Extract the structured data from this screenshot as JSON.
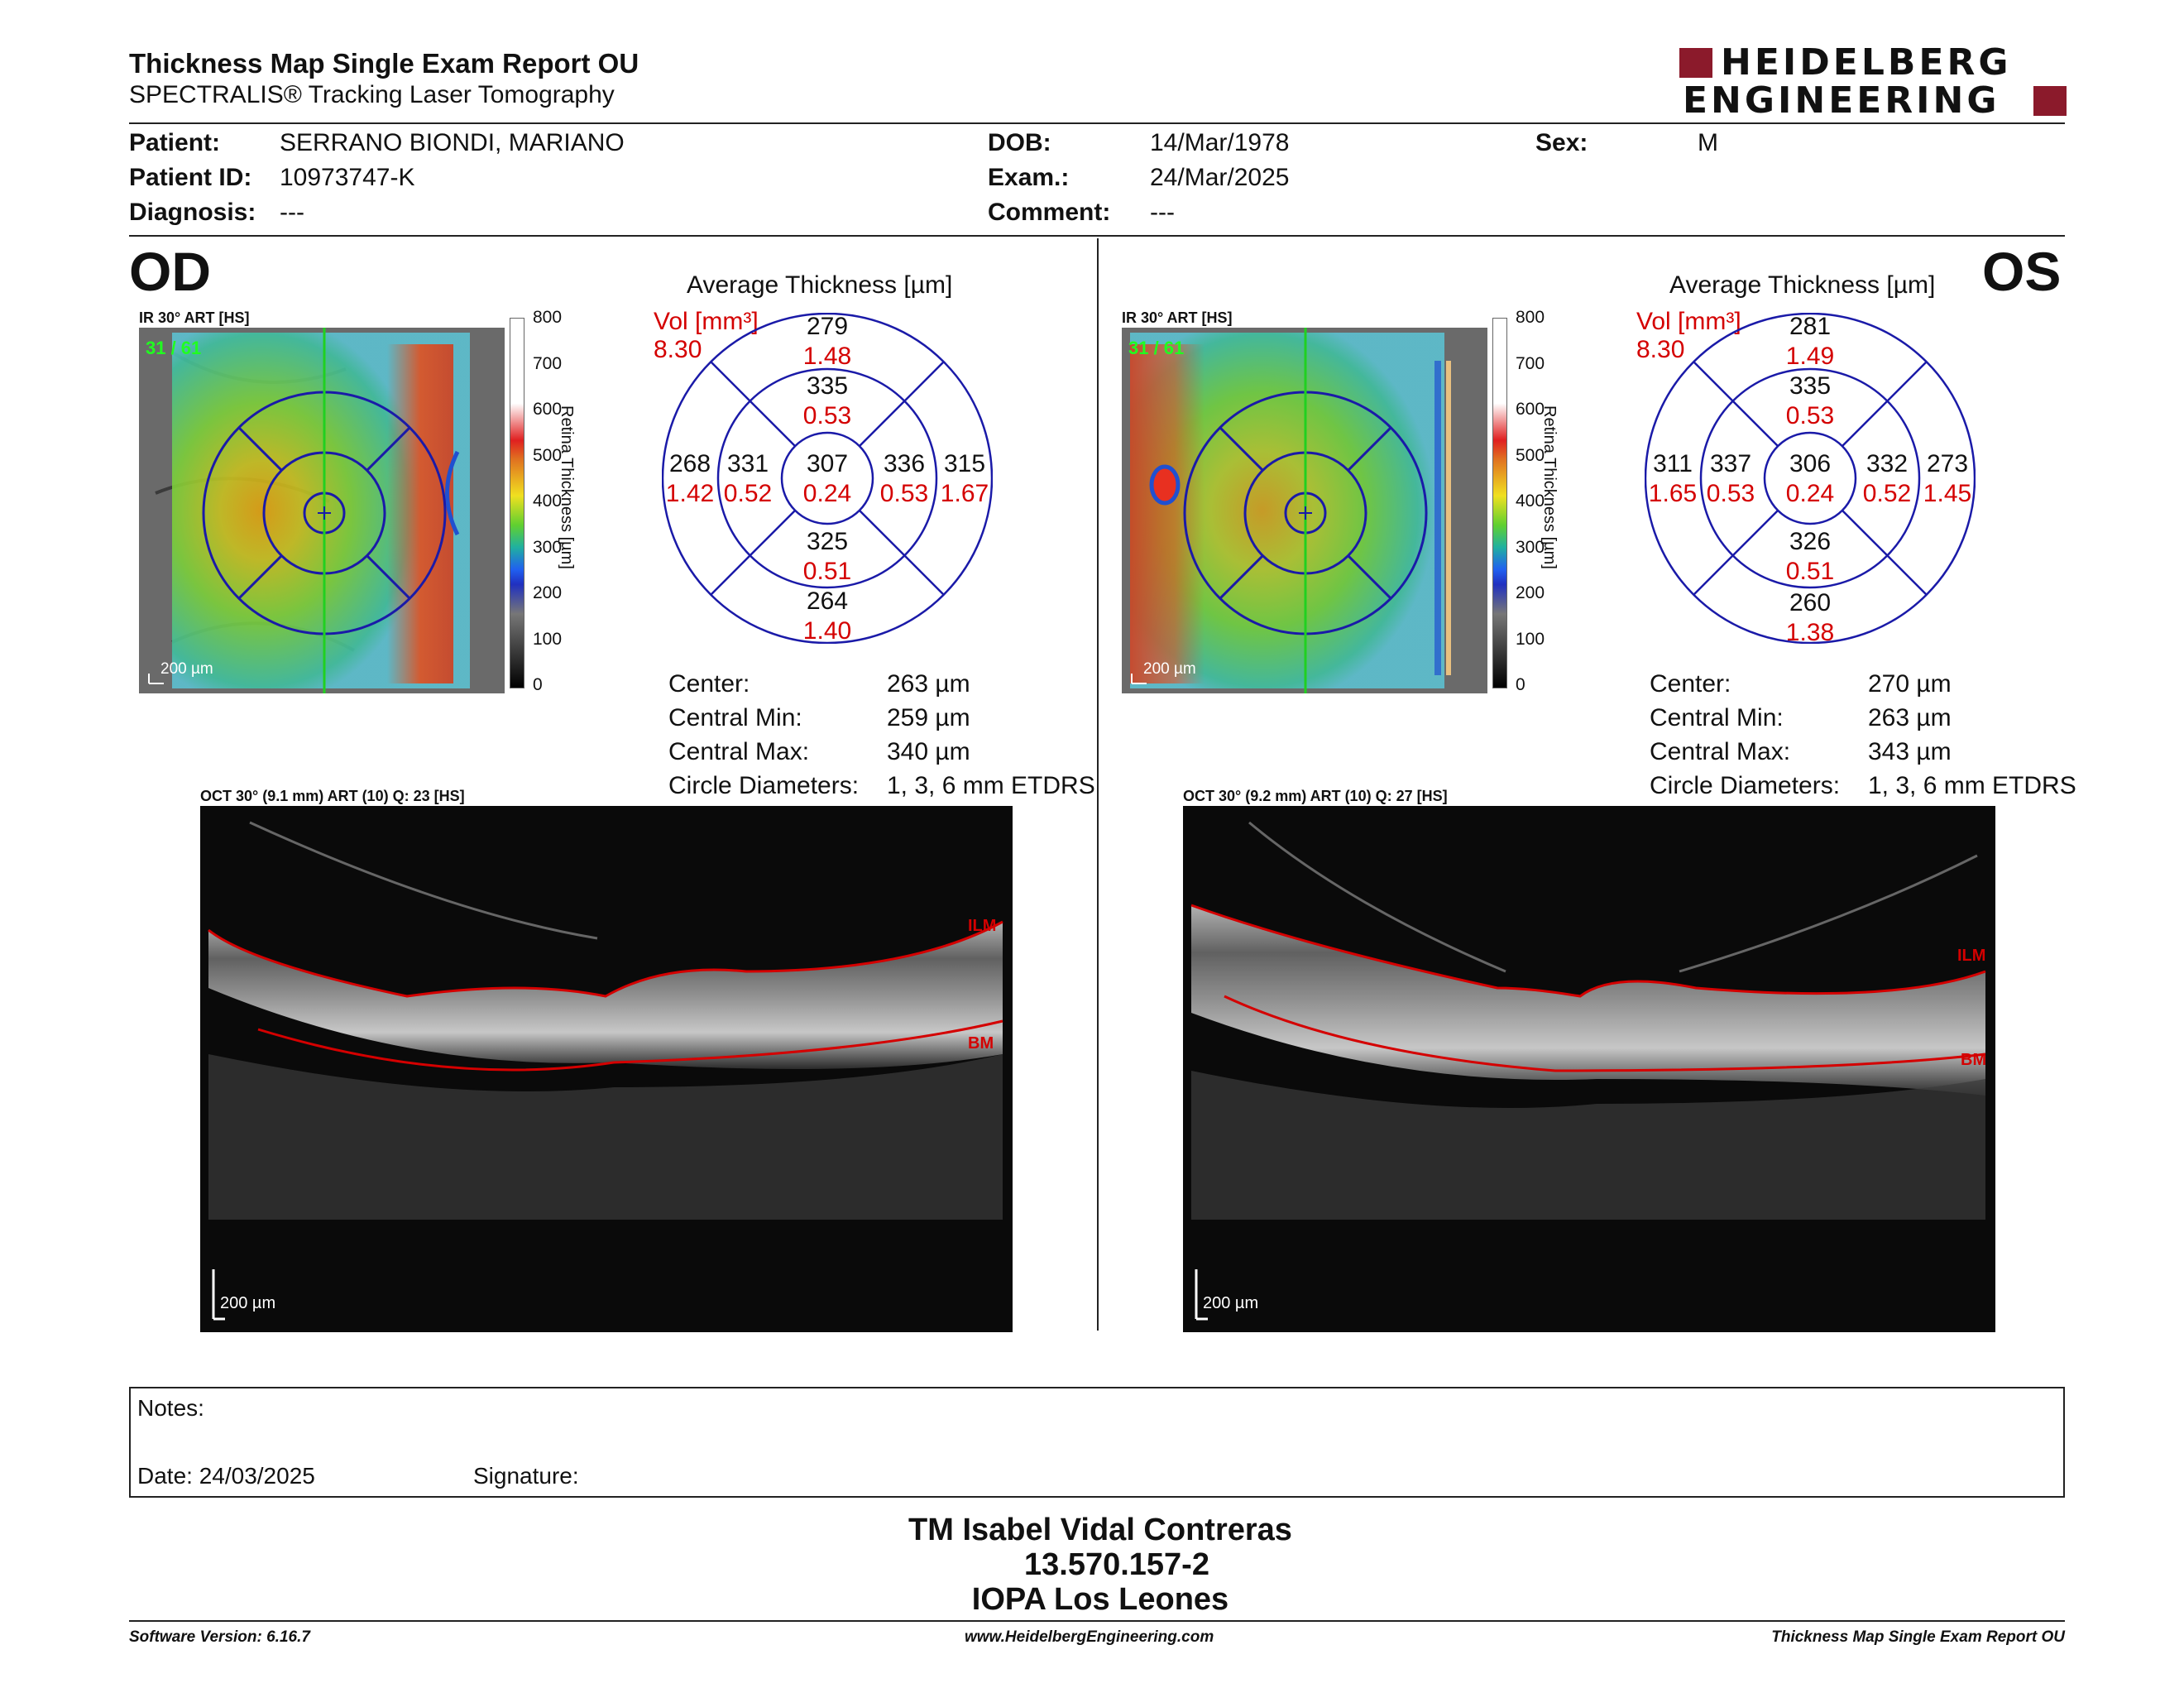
{
  "header": {
    "title": "Thickness Map Single Exam Report OU",
    "subtitle": "SPECTRALIS® Tracking Laser Tomography",
    "logo_line1": "HEIDELBERG",
    "logo_line2": "ENGINEERING"
  },
  "patient": {
    "patient_label": "Patient:",
    "patient_value": "SERRANO BIONDI, MARIANO",
    "id_label": "Patient ID:",
    "id_value": "10973747-K",
    "diagnosis_label": "Diagnosis:",
    "diagnosis_value": "---",
    "dob_label": "DOB:",
    "dob_value": "14/Mar/1978",
    "exam_label": "Exam.:",
    "exam_value": "24/Mar/2025",
    "comment_label": "Comment:",
    "comment_value": "---",
    "sex_label": "Sex:",
    "sex_value": "M"
  },
  "colorbar": {
    "ticks": [
      "800",
      "700",
      "600",
      "500",
      "400",
      "300",
      "200",
      "100",
      "0"
    ],
    "label": "Retina Thickness [µm]"
  },
  "od": {
    "eye": "OD",
    "ir_label": "IR 30° ART [HS]",
    "frame_counter": "31 / 61",
    "scale_label": "200 µm",
    "avg_title": "Average Thickness [µm]",
    "vol_label": "Vol [mm³]",
    "vol_value": "8.30",
    "sectors": {
      "center": {
        "thick": "307",
        "vol": "0.24"
      },
      "inner_sup": {
        "thick": "335",
        "vol": "0.53"
      },
      "inner_inf": {
        "thick": "325",
        "vol": "0.51"
      },
      "inner_left": {
        "thick": "331",
        "vol": "0.52"
      },
      "inner_right": {
        "thick": "336",
        "vol": "0.53"
      },
      "outer_sup": {
        "thick": "279",
        "vol": "1.48"
      },
      "outer_inf": {
        "thick": "264",
        "vol": "1.40"
      },
      "outer_left": {
        "thick": "268",
        "vol": "1.42"
      },
      "outer_right": {
        "thick": "315",
        "vol": "1.67"
      }
    },
    "stats": {
      "center_label": "Center:",
      "center_value": "263 µm",
      "min_label": "Central Min:",
      "min_value": "259 µm",
      "max_label": "Central Max:",
      "max_value": "340 µm",
      "diam_label": "Circle Diameters:",
      "diam_value": "1, 3, 6 mm ETDRS"
    },
    "oct_label": "OCT 30° (9.1 mm) ART (10) Q: 23 [HS]",
    "oct_scale": "200 µm",
    "ilm": "ILM",
    "bm": "BM"
  },
  "os": {
    "eye": "OS",
    "ir_label": "IR 30° ART [HS]",
    "frame_counter": "31 / 61",
    "scale_label": "200 µm",
    "avg_title": "Average Thickness [µm]",
    "vol_label": "Vol [mm³]",
    "vol_value": "8.30",
    "sectors": {
      "center": {
        "thick": "306",
        "vol": "0.24"
      },
      "inner_sup": {
        "thick": "335",
        "vol": "0.53"
      },
      "inner_inf": {
        "thick": "326",
        "vol": "0.51"
      },
      "inner_left": {
        "thick": "337",
        "vol": "0.53"
      },
      "inner_right": {
        "thick": "332",
        "vol": "0.52"
      },
      "outer_sup": {
        "thick": "281",
        "vol": "1.49"
      },
      "outer_inf": {
        "thick": "260",
        "vol": "1.38"
      },
      "outer_left": {
        "thick": "311",
        "vol": "1.65"
      },
      "outer_right": {
        "thick": "273",
        "vol": "1.45"
      }
    },
    "stats": {
      "center_label": "Center:",
      "center_value": "270 µm",
      "min_label": "Central Min:",
      "min_value": "263 µm",
      "max_label": "Central Max:",
      "max_value": "343 µm",
      "diam_label": "Circle Diameters:",
      "diam_value": "1, 3, 6 mm ETDRS"
    },
    "oct_label": "OCT 30° (9.2 mm) ART (10) Q: 27 [HS]",
    "oct_scale": "200 µm",
    "ilm": "ILM",
    "bm": "BM"
  },
  "notes": {
    "notes_label": "Notes:",
    "date_label": "Date: 24/03/2025",
    "signature_label": "Signature:"
  },
  "signatory": {
    "name": "TM Isabel Vidal Contreras",
    "id": "13.570.157-2",
    "institution": "IOPA Los Leones"
  },
  "footer": {
    "software": "Software Version: 6.16.7",
    "website": "www.HeidelbergEngineering.com",
    "report": "Thickness Map Single Exam Report OU"
  },
  "colors": {
    "accent_red": "#d40000",
    "grid_blue": "#1a1aa8",
    "logo_maroon": "#8b1a2b"
  }
}
